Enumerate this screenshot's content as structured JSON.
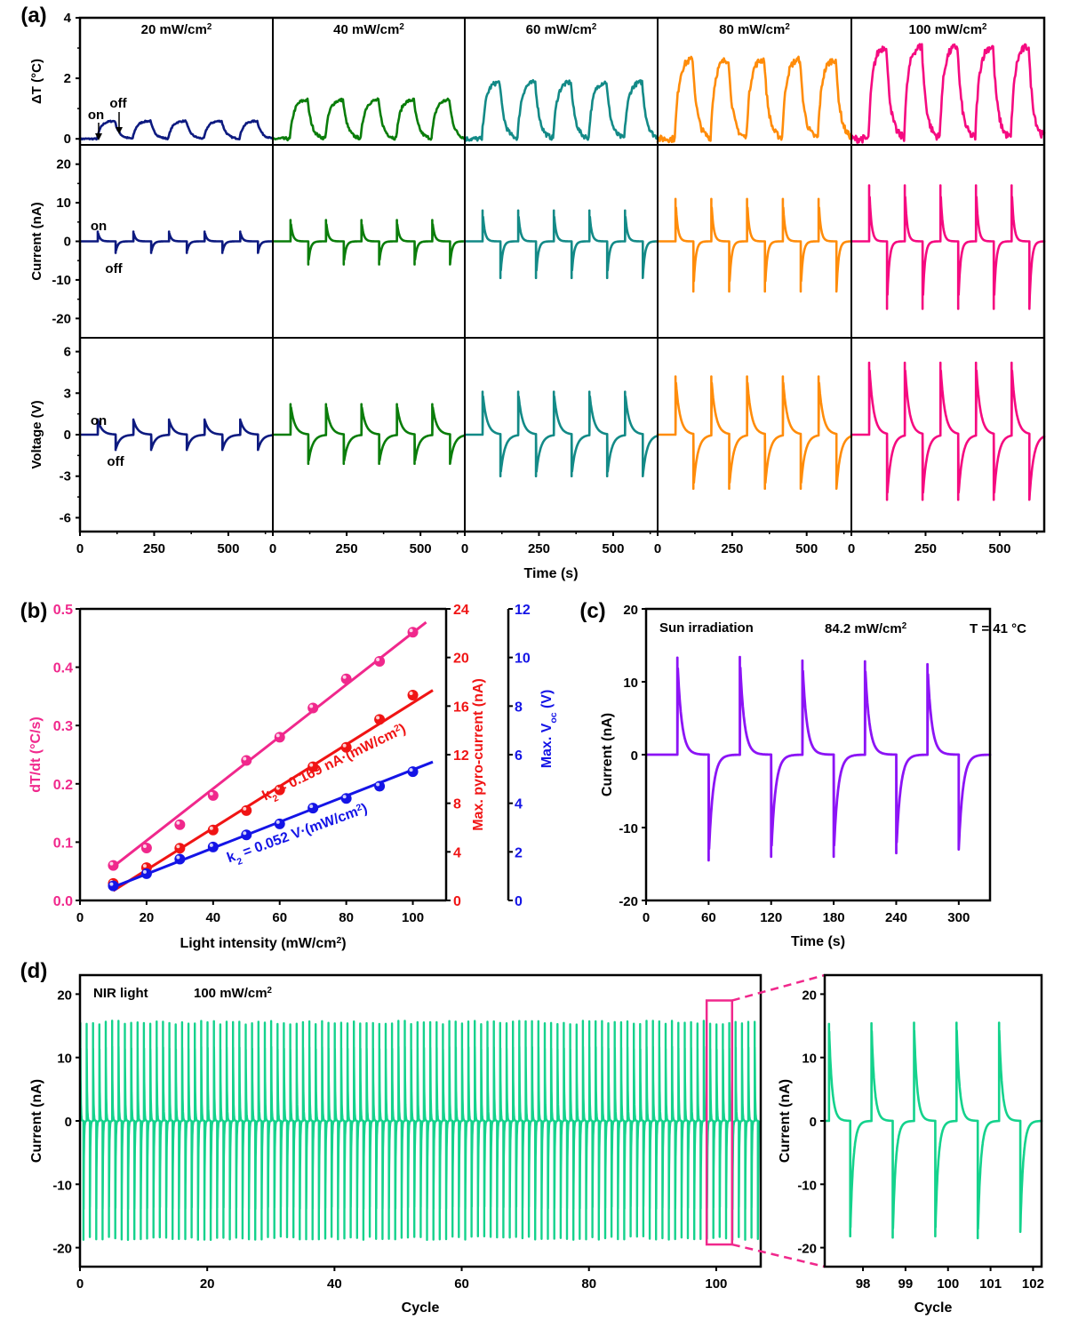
{
  "figure": {
    "colors": {
      "p20": "#0d1a80",
      "p40": "#0a7d0a",
      "p60": "#138a87",
      "p80": "#ff8c0a",
      "p100": "#f50a80",
      "b_dT": "#f0288c",
      "b_current": "#f01414",
      "b_voltage": "#1414e6",
      "c_trace": "#8c14f5",
      "d_trace": "#14d28c",
      "d_box": "#f0288c"
    }
  },
  "chart_data": [
    {
      "panel": "a",
      "label": "(a)",
      "type": "line",
      "xlabel": "Time (s)",
      "x_ticks": [
        "0",
        "250",
        "500"
      ],
      "xlim": [
        0,
        650
      ],
      "columns": [
        {
          "title": "20 mW/cm",
          "sup": "2",
          "intensity": 20,
          "color_key": "p20",
          "dT_peak": 0.55,
          "current_peak": 2.5,
          "current_min": -3,
          "voltage_peak": 1.1,
          "voltage_min": -1.1
        },
        {
          "title": "40 mW/cm",
          "sup": "2",
          "intensity": 40,
          "color_key": "p40",
          "dT_peak": 1.2,
          "current_peak": 5.5,
          "current_min": -6,
          "voltage_peak": 2.2,
          "voltage_min": -2.1
        },
        {
          "title": "60 mW/cm",
          "sup": "2",
          "intensity": 60,
          "color_key": "p60",
          "dT_peak": 1.75,
          "current_peak": 8,
          "current_min": -9.5,
          "voltage_peak": 3.1,
          "voltage_min": -3.0
        },
        {
          "title": "80 mW/cm",
          "sup": "2",
          "intensity": 80,
          "color_key": "p80",
          "dT_peak": 2.45,
          "current_peak": 11,
          "current_min": -13,
          "voltage_peak": 4.2,
          "voltage_min": -3.9
        },
        {
          "title": "100 mW/cm",
          "sup": "2",
          "intensity": 100,
          "color_key": "p100",
          "dT_peak": 2.85,
          "current_peak": 14.5,
          "current_min": -17.5,
          "voltage_peak": 5.2,
          "voltage_min": -4.7
        }
      ],
      "rows": [
        {
          "ylabel": "ΔT (°C)",
          "ylim": [
            -0.2,
            4
          ],
          "yticks": [
            0,
            2,
            4
          ],
          "kind": "temp"
        },
        {
          "ylabel": "Current (nA)",
          "ylim": [
            -25,
            25
          ],
          "yticks": [
            -20,
            -10,
            0,
            10,
            20
          ],
          "kind": "current"
        },
        {
          "ylabel": "Voltage (V)",
          "ylim": [
            -7,
            7
          ],
          "yticks": [
            -6,
            -3,
            0,
            3,
            6
          ],
          "kind": "voltage"
        }
      ],
      "on_times": [
        60,
        180,
        300,
        420,
        540
      ],
      "off_times": [
        120,
        240,
        360,
        480,
        600
      ],
      "annotations": {
        "on": "on",
        "off": "off"
      }
    },
    {
      "panel": "b",
      "label": "(b)",
      "type": "scatter",
      "xlabel": "Light intensity (mW/cm",
      "xlabel_sup": "2",
      "xlabel_end": ")",
      "xlim": [
        0,
        110
      ],
      "xticks": [
        0,
        20,
        40,
        60,
        80,
        100
      ],
      "x": [
        10,
        20,
        30,
        40,
        50,
        60,
        70,
        80,
        90,
        100
      ],
      "series": [
        {
          "name": "dT/dt (°C/s)",
          "axis": "left",
          "ylim": [
            0,
            0.5
          ],
          "yticks": [
            "0.0",
            "0.1",
            "0.2",
            "0.3",
            "0.4",
            "0.5"
          ],
          "color_key": "b_dT",
          "values": [
            0.06,
            0.09,
            0.13,
            0.18,
            0.24,
            0.28,
            0.33,
            0.38,
            0.41,
            0.46
          ],
          "fit": [
            [
              10,
              0.058
            ],
            [
              104,
              0.477
            ]
          ]
        },
        {
          "name": "Max. pyro-current (nA)",
          "axis": "right1",
          "ylim": [
            0,
            24
          ],
          "yticks": [
            "0",
            "4",
            "8",
            "12",
            "16",
            "20",
            "24"
          ],
          "color_key": "b_current",
          "values": [
            1.4,
            2.7,
            4.3,
            5.8,
            7.4,
            9.1,
            11.0,
            12.6,
            14.9,
            16.9
          ],
          "fit": [
            [
              10,
              0.8
            ],
            [
              106,
              17.3
            ]
          ]
        },
        {
          "name": "Max. V_oc (V)",
          "axis": "right2",
          "ylim": [
            0,
            12
          ],
          "yticks": [
            "0",
            "2",
            "4",
            "6",
            "8",
            "10",
            "12"
          ],
          "color_key": "b_voltage",
          "values": [
            0.6,
            1.1,
            1.7,
            2.2,
            2.7,
            3.15,
            3.8,
            4.2,
            4.7,
            5.3
          ],
          "fit": [
            [
              10,
              0.55
            ],
            [
              106,
              5.7
            ]
          ]
        }
      ],
      "annotations": [
        {
          "text": "k",
          "sub": "2",
          "rest": " = 0.169 nA·(mW/cm",
          "sup": "2",
          "end": ")",
          "color_key": "b_current"
        },
        {
          "text": "k",
          "sub": "2",
          "rest": " = 0.052 V·(mW/cm",
          "sup": "2",
          "end": ")",
          "color_key": "b_voltage"
        }
      ],
      "ylabel_left": "dT/dt (°C/s)",
      "ylabel_right1": "Max. pyro-current (nA)",
      "ylabel_right2_main": "Max. V",
      "ylabel_right2_sub": "oc",
      "ylabel_right2_end": " (V)"
    },
    {
      "panel": "c",
      "label": "(c)",
      "type": "line",
      "title_left": "Sun irradiation",
      "title_mid": "84.2 mW/cm",
      "title_mid_sup": "2",
      "title_right": "T = 41 °C",
      "xlabel": "Time (s)",
      "ylabel": "Current (nA)",
      "xlim": [
        0,
        330
      ],
      "ylim": [
        -20,
        20
      ],
      "xticks": [
        0,
        60,
        120,
        180,
        240,
        300
      ],
      "yticks": [
        -20,
        -10,
        0,
        10,
        20
      ],
      "on_times": [
        30,
        90,
        150,
        210,
        270
      ],
      "off_times": [
        60,
        120,
        180,
        240,
        300
      ],
      "peaks": [
        13.3,
        13.4,
        12.9,
        12.8,
        12.4
      ],
      "troughs": [
        -14.5,
        -14.0,
        -14.0,
        -13.5,
        -13.0
      ]
    },
    {
      "panel": "d",
      "label": "(d)",
      "type": "line",
      "title_left": "NIR light",
      "title_mid": "100 mW/cm",
      "title_mid_sup": "2",
      "xlabel": "Cycle",
      "ylabel": "Current (nA)",
      "xlim": [
        0,
        107
      ],
      "ylim": [
        -23,
        23
      ],
      "xticks": [
        0,
        20,
        40,
        60,
        80,
        100
      ],
      "yticks": [
        -20,
        -10,
        0,
        10,
        20
      ],
      "cycles": 107,
      "peak": 15.5,
      "trough": -18.5,
      "zoom_box": {
        "x_from": 98.5,
        "x_to": 102.5,
        "y_from": -19.5,
        "y_to": 19
      },
      "inset": {
        "xlabel": "Cycle",
        "ylabel": "Current (nA)",
        "xlim": [
          97.1,
          102.2
        ],
        "ylim": [
          -23,
          23
        ],
        "xticks": [
          98,
          99,
          100,
          101,
          102
        ],
        "yticks": [
          -20,
          -10,
          0,
          10,
          20
        ],
        "on_cycles": [
          97.2,
          98.2,
          99.2,
          100.2,
          101.2
        ],
        "off_cycles": [
          97.7,
          98.7,
          99.7,
          100.7,
          101.7
        ],
        "peaks": [
          15.3,
          15.4,
          15.5,
          15.5,
          15.5
        ],
        "troughs": [
          -18.2,
          -18.4,
          -18.2,
          -18.5,
          -17.5
        ]
      }
    }
  ]
}
